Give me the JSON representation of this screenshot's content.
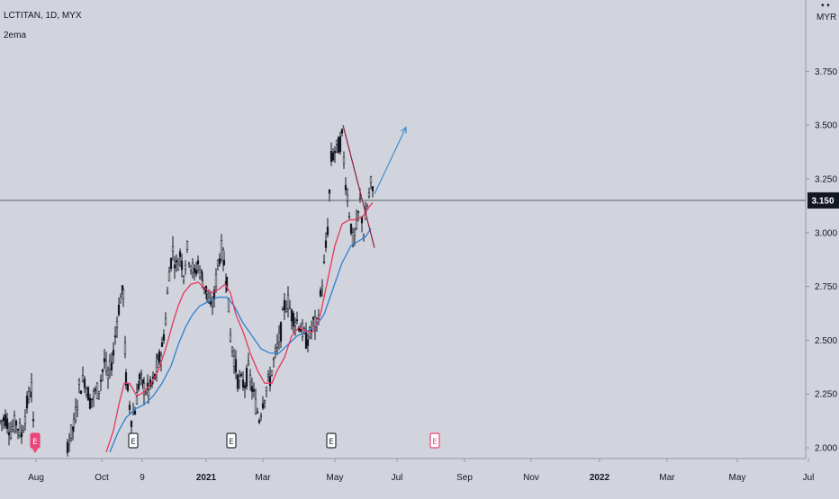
{
  "legend": {
    "symbol": "LCTITAN, 1D, MYX",
    "indicator": "2ema"
  },
  "colors": {
    "background": "#d1d4dc",
    "axis_text": "#131722",
    "candles": "#131722",
    "ema_fast": "#e8365d",
    "ema_slow": "#2f7fd1",
    "trendline": "#8b1e3f",
    "projection_arrow": "#3d8fd6",
    "price_line": "#5b5f6b",
    "price_badge": "#131722",
    "earnings_past": "#2a2e39",
    "earnings_future": "#e8477a"
  },
  "chart_data": {
    "type": "candlestick",
    "currency_label": "MYR",
    "y_ticks": [
      "3.750",
      "3.500",
      "3.250",
      "3.000",
      "2.750",
      "2.500",
      "2.250",
      "2.000"
    ],
    "y_tick_values": [
      3.75,
      3.5,
      3.25,
      3.0,
      2.75,
      2.5,
      2.25,
      2.0
    ],
    "ylim": [
      1.95,
      4.04
    ],
    "last_price": 3.15,
    "last_price_label": "3.150",
    "x_ticks": [
      {
        "label": "Aug",
        "bold": false
      },
      {
        "label": "Oct",
        "bold": false
      },
      {
        "label": "9",
        "bold": false
      },
      {
        "label": "2021",
        "bold": true
      },
      {
        "label": "Mar",
        "bold": false
      },
      {
        "label": "May",
        "bold": false
      },
      {
        "label": "Jul",
        "bold": false
      },
      {
        "label": "Sep",
        "bold": false
      },
      {
        "label": "Nov",
        "bold": false
      },
      {
        "label": "2022",
        "bold": true
      },
      {
        "label": "Mar",
        "bold": false
      },
      {
        "label": "May",
        "bold": false
      },
      {
        "label": "Jul",
        "bold": false
      }
    ],
    "price_path": [
      [
        0,
        2.12
      ],
      [
        6,
        2.14
      ],
      [
        12,
        2.08
      ],
      [
        18,
        2.12
      ],
      [
        24,
        2.06
      ],
      [
        30,
        2.2
      ],
      [
        35,
        2.28
      ],
      [
        38,
        2.0
      ],
      [
        75,
        2.02
      ],
      [
        82,
        2.1
      ],
      [
        88,
        2.28
      ],
      [
        94,
        2.32
      ],
      [
        100,
        2.22
      ],
      [
        104,
        2.24
      ],
      [
        110,
        2.28
      ],
      [
        116,
        2.4
      ],
      [
        120,
        2.32
      ],
      [
        126,
        2.44
      ],
      [
        130,
        2.6
      ],
      [
        134,
        2.7
      ],
      [
        137,
        2.72
      ],
      [
        140,
        2.32
      ],
      [
        146,
        2.14
      ],
      [
        150,
        2.18
      ],
      [
        155,
        2.32
      ],
      [
        160,
        2.28
      ],
      [
        165,
        2.26
      ],
      [
        170,
        2.3
      ],
      [
        175,
        2.38
      ],
      [
        180,
        2.46
      ],
      [
        184,
        2.6
      ],
      [
        188,
        2.82
      ],
      [
        192,
        2.92
      ],
      [
        196,
        2.84
      ],
      [
        200,
        2.9
      ],
      [
        204,
        2.82
      ],
      [
        208,
        2.92
      ],
      [
        212,
        2.86
      ],
      [
        216,
        2.8
      ],
      [
        220,
        2.86
      ],
      [
        225,
        2.78
      ],
      [
        230,
        2.72
      ],
      [
        234,
        2.64
      ],
      [
        238,
        2.7
      ],
      [
        242,
        2.86
      ],
      [
        246,
        2.92
      ],
      [
        249,
        2.86
      ],
      [
        252,
        2.78
      ],
      [
        256,
        2.52
      ],
      [
        260,
        2.42
      ],
      [
        264,
        2.32
      ],
      [
        268,
        2.3
      ],
      [
        272,
        2.3
      ],
      [
        276,
        2.36
      ],
      [
        280,
        2.28
      ],
      [
        284,
        2.2
      ],
      [
        288,
        2.14
      ],
      [
        292,
        2.22
      ],
      [
        296,
        2.28
      ],
      [
        300,
        2.32
      ],
      [
        304,
        2.4
      ],
      [
        308,
        2.46
      ],
      [
        312,
        2.54
      ],
      [
        316,
        2.66
      ],
      [
        320,
        2.68
      ],
      [
        324,
        2.62
      ],
      [
        328,
        2.6
      ],
      [
        332,
        2.58
      ],
      [
        336,
        2.54
      ],
      [
        340,
        2.5
      ],
      [
        344,
        2.52
      ],
      [
        348,
        2.58
      ],
      [
        352,
        2.56
      ],
      [
        356,
        2.7
      ],
      [
        360,
        2.84
      ],
      [
        364,
        3.02
      ],
      [
        368,
        3.34
      ],
      [
        372,
        3.38
      ],
      [
        376,
        3.4
      ],
      [
        380,
        3.44
      ],
      [
        384,
        3.24
      ],
      [
        388,
        3.1
      ],
      [
        392,
        2.96
      ],
      [
        396,
        3.02
      ],
      [
        400,
        3.14
      ],
      [
        404,
        3.0
      ],
      [
        408,
        3.12
      ],
      [
        412,
        3.22
      ],
      [
        416,
        3.15
      ]
    ],
    "ema_fast": [
      [
        118,
        1.98
      ],
      [
        126,
        2.08
      ],
      [
        132,
        2.2
      ],
      [
        138,
        2.3
      ],
      [
        144,
        2.3
      ],
      [
        152,
        2.24
      ],
      [
        160,
        2.26
      ],
      [
        168,
        2.3
      ],
      [
        176,
        2.36
      ],
      [
        184,
        2.46
      ],
      [
        192,
        2.58
      ],
      [
        198,
        2.66
      ],
      [
        204,
        2.72
      ],
      [
        212,
        2.76
      ],
      [
        220,
        2.77
      ],
      [
        228,
        2.74
      ],
      [
        236,
        2.72
      ],
      [
        244,
        2.74
      ],
      [
        250,
        2.76
      ],
      [
        256,
        2.72
      ],
      [
        262,
        2.62
      ],
      [
        270,
        2.54
      ],
      [
        278,
        2.44
      ],
      [
        286,
        2.36
      ],
      [
        294,
        2.3
      ],
      [
        302,
        2.3
      ],
      [
        308,
        2.36
      ],
      [
        316,
        2.42
      ],
      [
        324,
        2.52
      ],
      [
        332,
        2.56
      ],
      [
        340,
        2.54
      ],
      [
        348,
        2.54
      ],
      [
        356,
        2.62
      ],
      [
        364,
        2.78
      ],
      [
        372,
        2.94
      ],
      [
        380,
        3.04
      ],
      [
        388,
        3.06
      ],
      [
        396,
        3.06
      ],
      [
        404,
        3.08
      ],
      [
        410,
        3.12
      ],
      [
        414,
        3.14
      ]
    ],
    "ema_slow": [
      [
        122,
        1.98
      ],
      [
        132,
        2.08
      ],
      [
        140,
        2.14
      ],
      [
        150,
        2.18
      ],
      [
        160,
        2.2
      ],
      [
        170,
        2.24
      ],
      [
        180,
        2.3
      ],
      [
        190,
        2.38
      ],
      [
        198,
        2.48
      ],
      [
        206,
        2.56
      ],
      [
        214,
        2.62
      ],
      [
        222,
        2.66
      ],
      [
        232,
        2.68
      ],
      [
        242,
        2.7
      ],
      [
        252,
        2.7
      ],
      [
        260,
        2.66
      ],
      [
        270,
        2.58
      ],
      [
        280,
        2.52
      ],
      [
        290,
        2.46
      ],
      [
        300,
        2.44
      ],
      [
        310,
        2.44
      ],
      [
        320,
        2.48
      ],
      [
        330,
        2.52
      ],
      [
        340,
        2.54
      ],
      [
        350,
        2.56
      ],
      [
        360,
        2.62
      ],
      [
        370,
        2.74
      ],
      [
        380,
        2.86
      ],
      [
        390,
        2.94
      ],
      [
        398,
        2.96
      ],
      [
        406,
        2.98
      ],
      [
        412,
        3.02
      ]
    ],
    "trendline": [
      [
        381,
        3.5
      ],
      [
        416,
        2.93
      ]
    ],
    "projection_arrow": [
      [
        416,
        3.18
      ],
      [
        451,
        3.49
      ]
    ],
    "earnings_markers": [
      {
        "x": 39,
        "label": "E",
        "state": "past-highlight"
      },
      {
        "x": 148,
        "label": "E",
        "state": "past"
      },
      {
        "x": 257,
        "label": "E",
        "state": "past"
      },
      {
        "x": 368,
        "label": "E",
        "state": "past"
      },
      {
        "x": 483,
        "label": "E",
        "state": "future"
      }
    ]
  }
}
